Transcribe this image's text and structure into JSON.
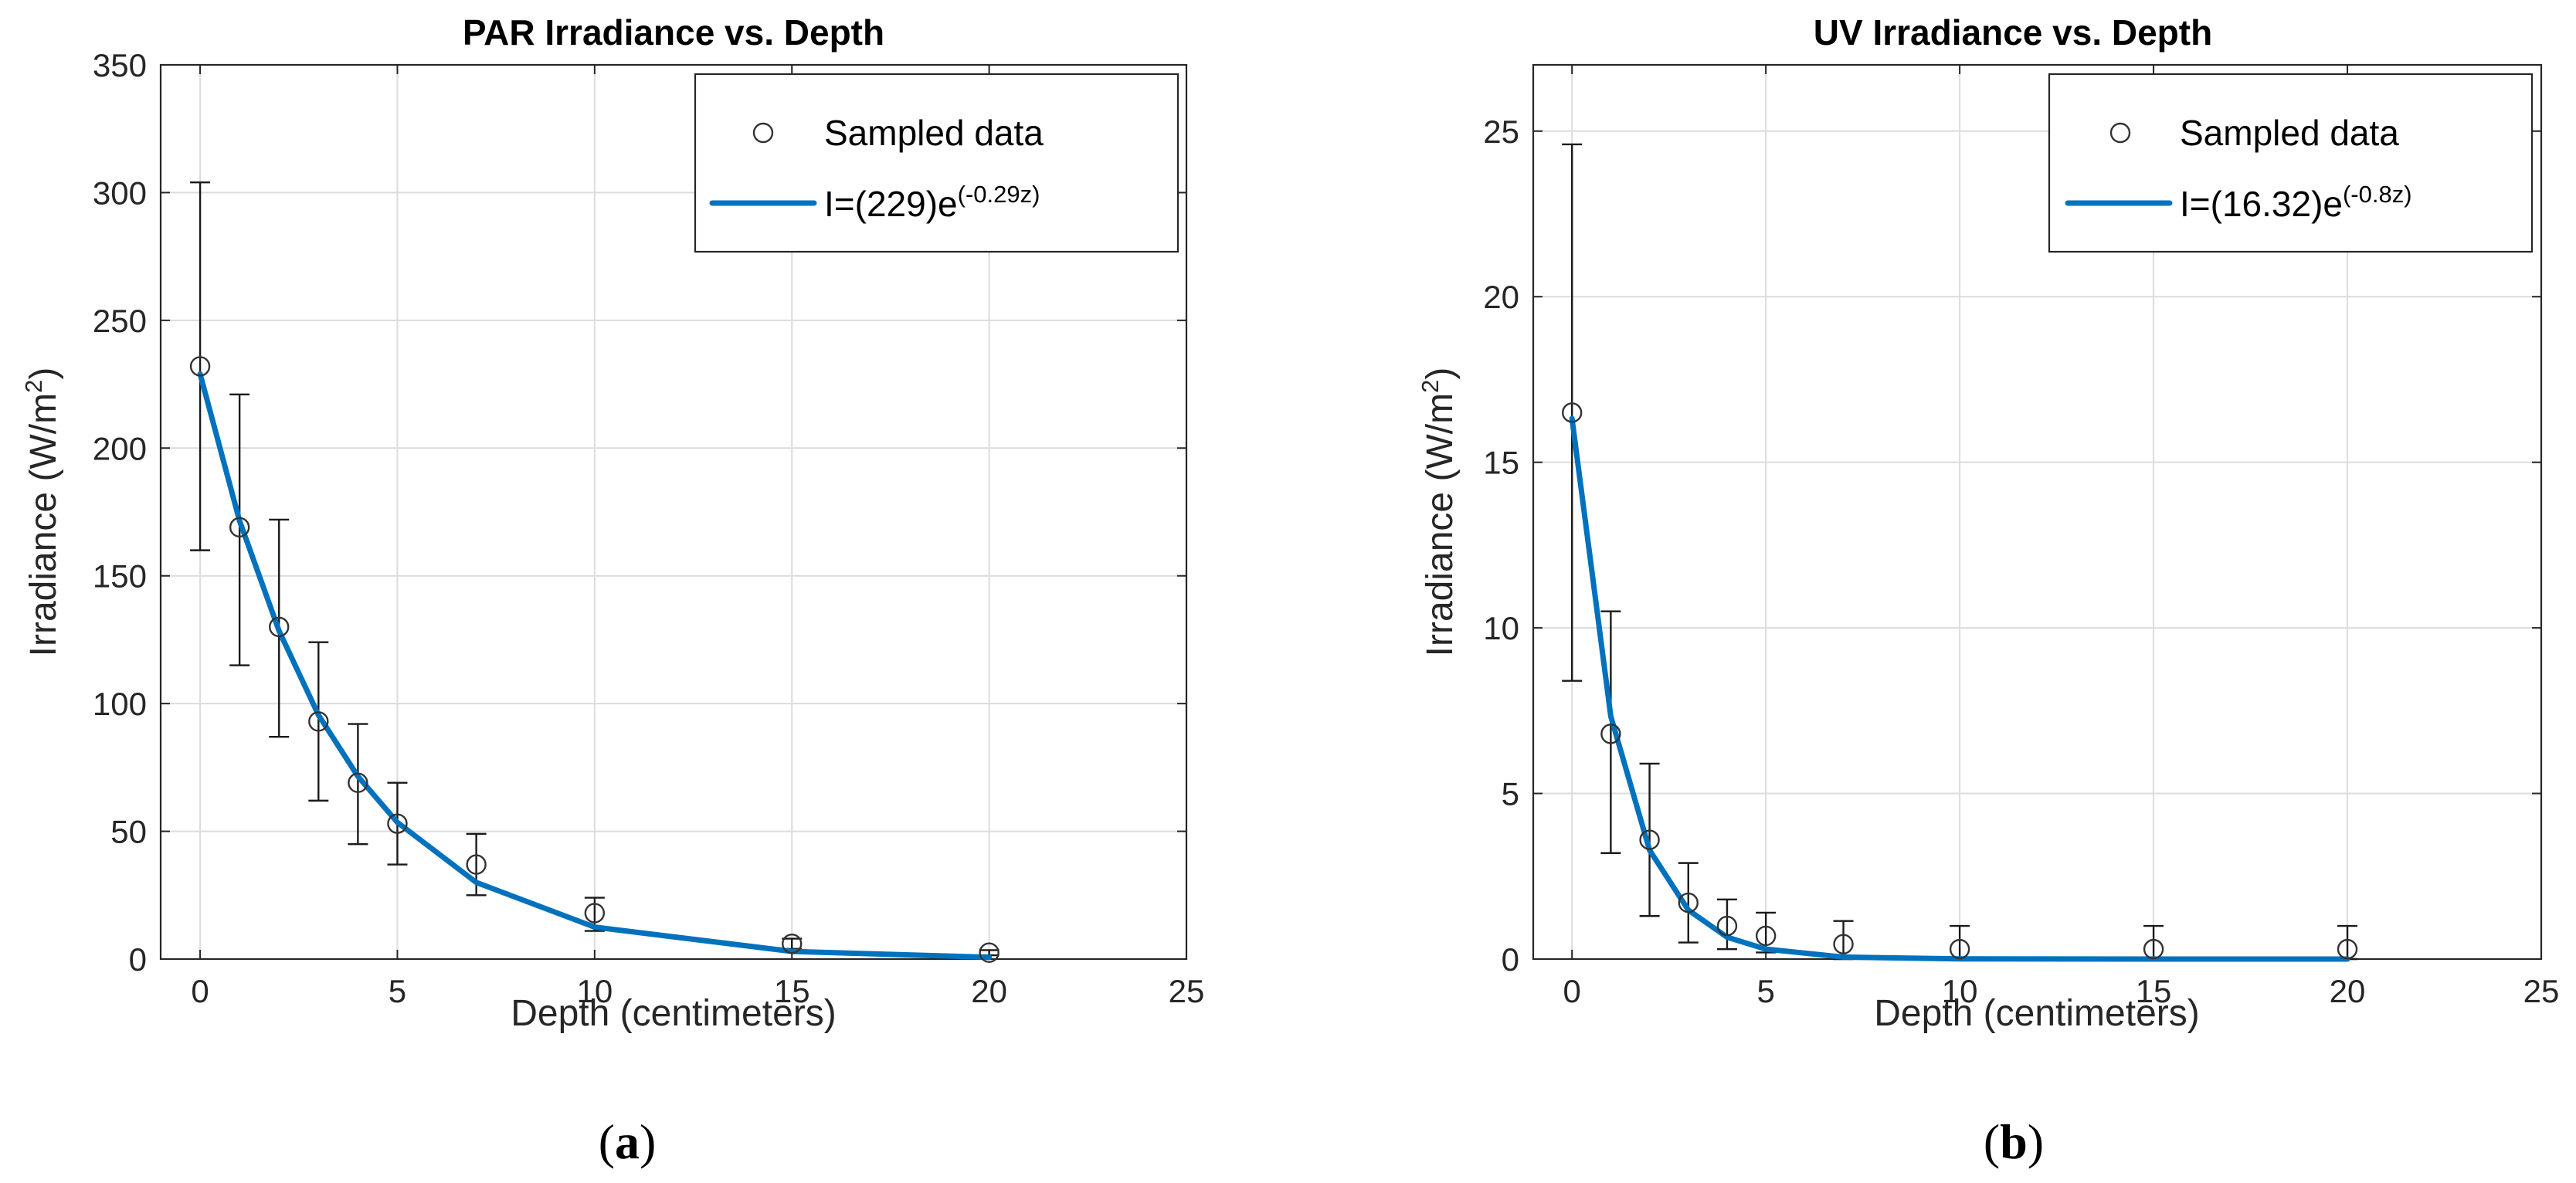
{
  "figure": {
    "panels": [
      {
        "label_open": "(",
        "label_letter": "a",
        "label_close": ")"
      },
      {
        "label_open": "(",
        "label_letter": "b",
        "label_close": ")"
      }
    ]
  },
  "chart_data": [
    {
      "type": "scatter",
      "title": "PAR Irradiance vs. Depth",
      "xlabel": "Depth (centimeters)",
      "ylabel_base": "Irradiance (W/m",
      "ylabel_sup": "2",
      "ylabel_close": ")",
      "xlim": [
        -1,
        25
      ],
      "ylim": [
        0,
        350
      ],
      "xticks": [
        0,
        5,
        10,
        15,
        20,
        25
      ],
      "yticks": [
        0,
        50,
        100,
        150,
        200,
        250,
        300,
        350
      ],
      "grid": true,
      "legend_position": "top-right",
      "colors": {
        "fit": "#0072BD",
        "marker": "#333333",
        "errorbar": "#1a1a1a"
      },
      "series": [
        {
          "name": "Sampled data",
          "kind": "scatter-errorbar",
          "x": [
            0,
            1,
            2,
            3,
            4,
            5,
            7,
            10,
            15,
            20
          ],
          "y": [
            232,
            169,
            130,
            93,
            69,
            53,
            37,
            18,
            6,
            2.5
          ],
          "err_low": [
            72,
            54,
            43,
            31,
            24,
            16,
            12,
            7,
            2,
            1
          ],
          "err_high": [
            72,
            52,
            42,
            31,
            23,
            16,
            12,
            6,
            2,
            1
          ]
        },
        {
          "name": "fit",
          "kind": "line",
          "legend_base": "I=(229)e",
          "legend_sup": "(-0.29z)",
          "x": [
            0,
            1,
            2,
            3,
            4,
            5,
            7,
            10,
            15,
            20
          ],
          "y": [
            229,
            171.5,
            128.5,
            95.5,
            71.5,
            53.5,
            30,
            12.5,
            3,
            0.7
          ]
        }
      ]
    },
    {
      "type": "scatter",
      "title": "UV Irradiance vs. Depth",
      "xlabel": "Depth (centimeters)",
      "ylabel_base": "Irradiance (W/m",
      "ylabel_sup": "2",
      "ylabel_close": ")",
      "xlim": [
        -1,
        25
      ],
      "ylim": [
        0,
        27
      ],
      "xticks": [
        0,
        5,
        10,
        15,
        20,
        25
      ],
      "yticks": [
        0,
        5,
        10,
        15,
        20,
        25
      ],
      "grid": true,
      "legend_position": "top-right",
      "colors": {
        "fit": "#0072BD",
        "marker": "#333333",
        "errorbar": "#1a1a1a"
      },
      "series": [
        {
          "name": "Sampled data",
          "kind": "scatter-errorbar",
          "x": [
            0,
            1,
            2,
            3,
            4,
            5,
            7,
            10,
            15,
            20
          ],
          "y": [
            16.5,
            6.8,
            3.6,
            1.7,
            1.0,
            0.7,
            0.45,
            0.3,
            0.3,
            0.3
          ],
          "err_low": [
            8.1,
            3.6,
            2.3,
            1.2,
            0.7,
            0.5,
            0.45,
            0.3,
            0.3,
            0.3
          ],
          "err_high": [
            8.1,
            3.7,
            2.3,
            1.2,
            0.8,
            0.7,
            0.7,
            0.7,
            0.7,
            0.7
          ]
        },
        {
          "name": "fit",
          "kind": "line",
          "legend_base": "I=(16.32)e",
          "legend_sup": "(-0.8z)",
          "x": [
            0,
            1,
            2,
            3,
            4,
            5,
            7,
            10,
            15,
            20
          ],
          "y": [
            16.32,
            7.33,
            3.29,
            1.48,
            0.66,
            0.3,
            0.06,
            0.005,
            0,
            0
          ]
        }
      ]
    }
  ]
}
